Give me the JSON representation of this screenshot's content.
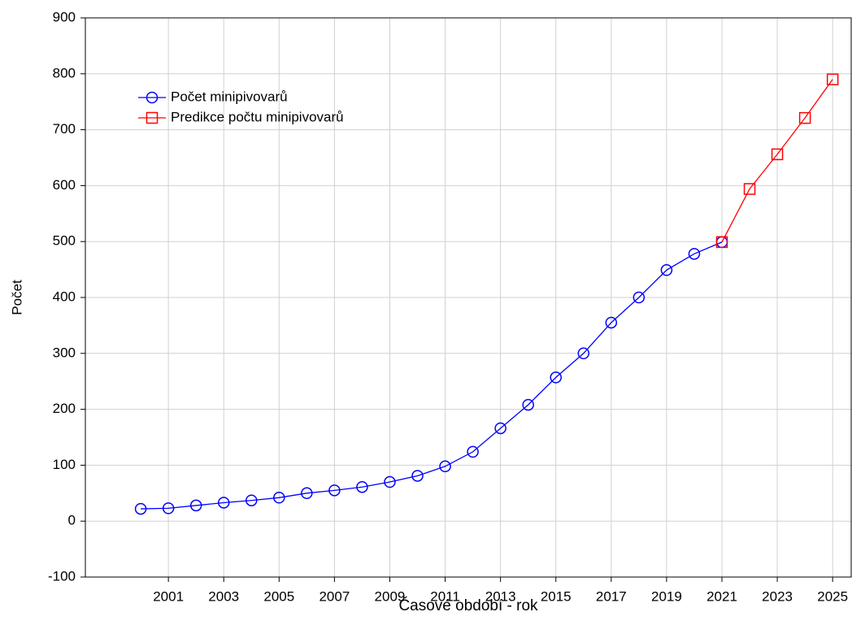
{
  "chart_data": {
    "type": "line",
    "x_label": "Časové období - rok",
    "y_label": "Počet",
    "xlim": [
      1998,
      2025.7
    ],
    "ylim": [
      -100,
      900
    ],
    "xticks": [
      2001,
      2003,
      2005,
      2007,
      2009,
      2011,
      2013,
      2015,
      2017,
      2019,
      2021,
      2023,
      2025
    ],
    "yticks": [
      -100,
      0,
      100,
      200,
      300,
      400,
      500,
      600,
      700,
      800,
      900
    ],
    "grid": true,
    "legend": "upper left",
    "series": [
      {
        "name": "Počet minipivovarů",
        "color": "#0000ff",
        "marker": "circle",
        "x": [
          2000,
          2001,
          2002,
          2003,
          2004,
          2005,
          2006,
          2007,
          2008,
          2009,
          2010,
          2011,
          2012,
          2013,
          2014,
          2015,
          2016,
          2017,
          2018,
          2019,
          2020,
          2021
        ],
        "values": [
          22,
          23,
          28,
          33,
          37,
          42,
          50,
          55,
          61,
          70,
          81,
          98,
          124,
          166,
          208,
          257,
          300,
          355,
          400,
          449,
          478,
          499
        ]
      },
      {
        "name": "Predikce počtu minipivovarů",
        "color": "#ff0000",
        "marker": "square",
        "x": [
          2021,
          2022,
          2023,
          2024,
          2025
        ],
        "values": [
          499,
          594,
          656,
          721,
          790
        ]
      }
    ]
  }
}
